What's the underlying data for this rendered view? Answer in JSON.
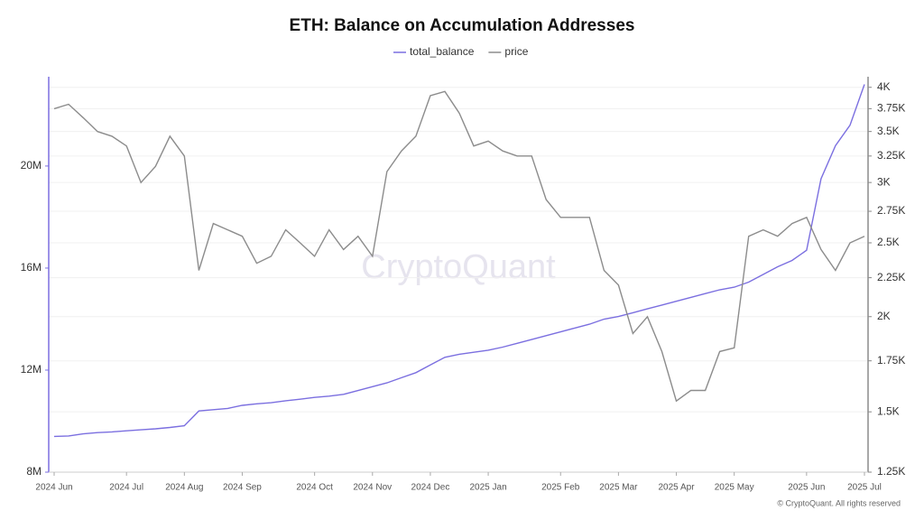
{
  "chart_data": {
    "type": "line",
    "title": "ETH: Balance on Accumulation Addresses",
    "watermark": "CryptoQuant",
    "copyright": "© CryptoQuant. All rights reserved",
    "categories": [
      "2024 Jun",
      null,
      null,
      null,
      null,
      "2024 Jul",
      null,
      null,
      null,
      "2024 Aug",
      null,
      null,
      null,
      "2024 Sep",
      null,
      null,
      null,
      null,
      "2024 Oct",
      null,
      null,
      null,
      "2024 Nov",
      null,
      null,
      null,
      "2024 Dec",
      null,
      null,
      null,
      "2025 Jan",
      null,
      null,
      null,
      null,
      "2025 Feb",
      null,
      null,
      null,
      "2025 Mar",
      null,
      null,
      null,
      "2025 Apr",
      null,
      null,
      null,
      "2025 May",
      null,
      null,
      null,
      null,
      "2025 Jun",
      null,
      null,
      null,
      "2025 Jul"
    ],
    "series": [
      {
        "name": "total_balance",
        "color": "#7b6fe0",
        "axis": "y",
        "values": [
          9400000,
          9420000,
          9500000,
          9550000,
          9580000,
          9620000,
          9660000,
          9700000,
          9750000,
          9820000,
          10400000,
          10450000,
          10500000,
          10620000,
          10680000,
          10720000,
          10800000,
          10860000,
          10930000,
          10980000,
          11050000,
          11200000,
          11350000,
          11500000,
          11700000,
          11900000,
          12200000,
          12500000,
          12620000,
          12700000,
          12780000,
          12900000,
          13050000,
          13200000,
          13350000,
          13500000,
          13650000,
          13800000,
          14000000,
          14100000,
          14250000,
          14400000,
          14550000,
          14700000,
          14850000,
          15000000,
          15150000,
          15250000,
          15450000,
          15750000,
          16050000,
          16300000,
          16700000,
          19500000,
          20800000,
          21600000,
          23200000
        ]
      },
      {
        "name": "price",
        "color": "#8c8c8c",
        "axis": "y2",
        "values": [
          3750,
          3800,
          3650,
          3500,
          3450,
          3350,
          3000,
          3150,
          3450,
          3250,
          2300,
          2650,
          2600,
          2550,
          2350,
          2400,
          2600,
          2500,
          2400,
          2600,
          2450,
          2550,
          2400,
          3100,
          3300,
          3450,
          3900,
          3950,
          3700,
          3350,
          3400,
          3300,
          3250,
          3250,
          2850,
          2700,
          2700,
          2700,
          2300,
          2200,
          1900,
          2000,
          1800,
          1550,
          1600,
          1600,
          1800,
          1820,
          2550,
          2600,
          2550,
          2650,
          2700,
          2450,
          2300,
          2500,
          2550
        ]
      }
    ],
    "ylim": [
      8000000,
      23500000
    ],
    "yticks": [
      {
        "value": 8000000,
        "label": "8M"
      },
      {
        "value": 12000000,
        "label": "12M"
      },
      {
        "value": 16000000,
        "label": "16M"
      },
      {
        "value": 20000000,
        "label": "20M"
      }
    ],
    "y2lim": [
      1250,
      4130
    ],
    "y2log": true,
    "y2ticks": [
      {
        "value": 1250,
        "label": "1.25K"
      },
      {
        "value": 1500,
        "label": "1.5K"
      },
      {
        "value": 1750,
        "label": "1.75K"
      },
      {
        "value": 2000,
        "label": "2K"
      },
      {
        "value": 2250,
        "label": "2.25K"
      },
      {
        "value": 2500,
        "label": "2.5K"
      },
      {
        "value": 2750,
        "label": "2.75K"
      },
      {
        "value": 3000,
        "label": "3K"
      },
      {
        "value": 3250,
        "label": "3.25K"
      },
      {
        "value": 3500,
        "label": "3.5K"
      },
      {
        "value": 3750,
        "label": "3.75K"
      },
      {
        "value": 4000,
        "label": "4K"
      }
    ],
    "grid": true,
    "legend": "top"
  }
}
